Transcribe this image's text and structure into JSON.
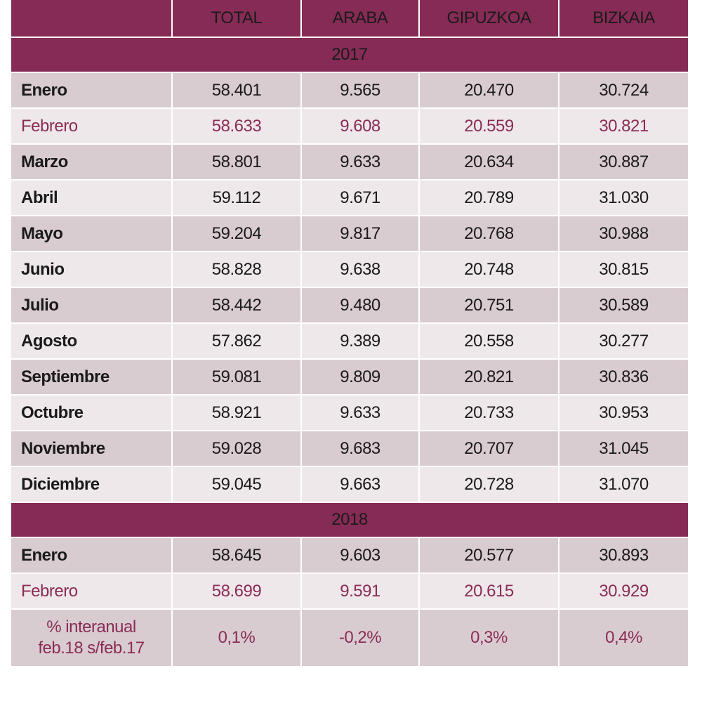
{
  "headers": [
    "",
    "TOTAL",
    "ARABA",
    "GIPUZKOA",
    "BIZKAIA"
  ],
  "sections": [
    {
      "year": "2017",
      "rows": [
        {
          "month": "Enero",
          "values": [
            "58.401",
            "9.565",
            "20.470",
            "30.724"
          ],
          "highlight": false
        },
        {
          "month": "Febrero",
          "values": [
            "58.633",
            "9.608",
            "20.559",
            "30.821"
          ],
          "highlight": true
        },
        {
          "month": "Marzo",
          "values": [
            "58.801",
            "9.633",
            "20.634",
            "30.887"
          ],
          "highlight": false
        },
        {
          "month": "Abril",
          "values": [
            "59.112",
            "9.671",
            "20.789",
            "31.030"
          ],
          "highlight": false
        },
        {
          "month": "Mayo",
          "values": [
            "59.204",
            "9.817",
            "20.768",
            "30.988"
          ],
          "highlight": false
        },
        {
          "month": "Junio",
          "values": [
            "58.828",
            "9.638",
            "20.748",
            "30.815"
          ],
          "highlight": false
        },
        {
          "month": "Julio",
          "values": [
            "58.442",
            "9.480",
            "20.751",
            "30.589"
          ],
          "highlight": false
        },
        {
          "month": "Agosto",
          "values": [
            "57.862",
            "9.389",
            "20.558",
            "30.277"
          ],
          "highlight": false
        },
        {
          "month": "Septiembre",
          "values": [
            "59.081",
            "9.809",
            "20.821",
            "30.836"
          ],
          "highlight": false
        },
        {
          "month": "Octubre",
          "values": [
            "58.921",
            "9.633",
            "20.733",
            "30.953"
          ],
          "highlight": false
        },
        {
          "month": "Noviembre",
          "values": [
            "59.028",
            "9.683",
            "20.707",
            "31.045"
          ],
          "highlight": false
        },
        {
          "month": "Diciembre",
          "values": [
            "59.045",
            "9.663",
            "20.728",
            "31.070"
          ],
          "highlight": false
        }
      ]
    },
    {
      "year": "2018",
      "rows": [
        {
          "month": "Enero",
          "values": [
            "58.645",
            "9.603",
            "20.577",
            "30.893"
          ],
          "highlight": false
        },
        {
          "month": "Febrero",
          "values": [
            "58.699",
            "9.591",
            "20.615",
            "30.929"
          ],
          "highlight": true
        }
      ]
    }
  ],
  "variation": {
    "label_line1": "% interanual",
    "label_line2": "feb.18 s/feb.17",
    "values": [
      "0,1%",
      "-0,2%",
      "0,3%",
      "0,4%"
    ]
  },
  "colors": {
    "header_bg": "#862b55",
    "row_dark": "#d9ccd1",
    "row_light": "#efe8eb",
    "highlight_text": "#8a2c55"
  }
}
